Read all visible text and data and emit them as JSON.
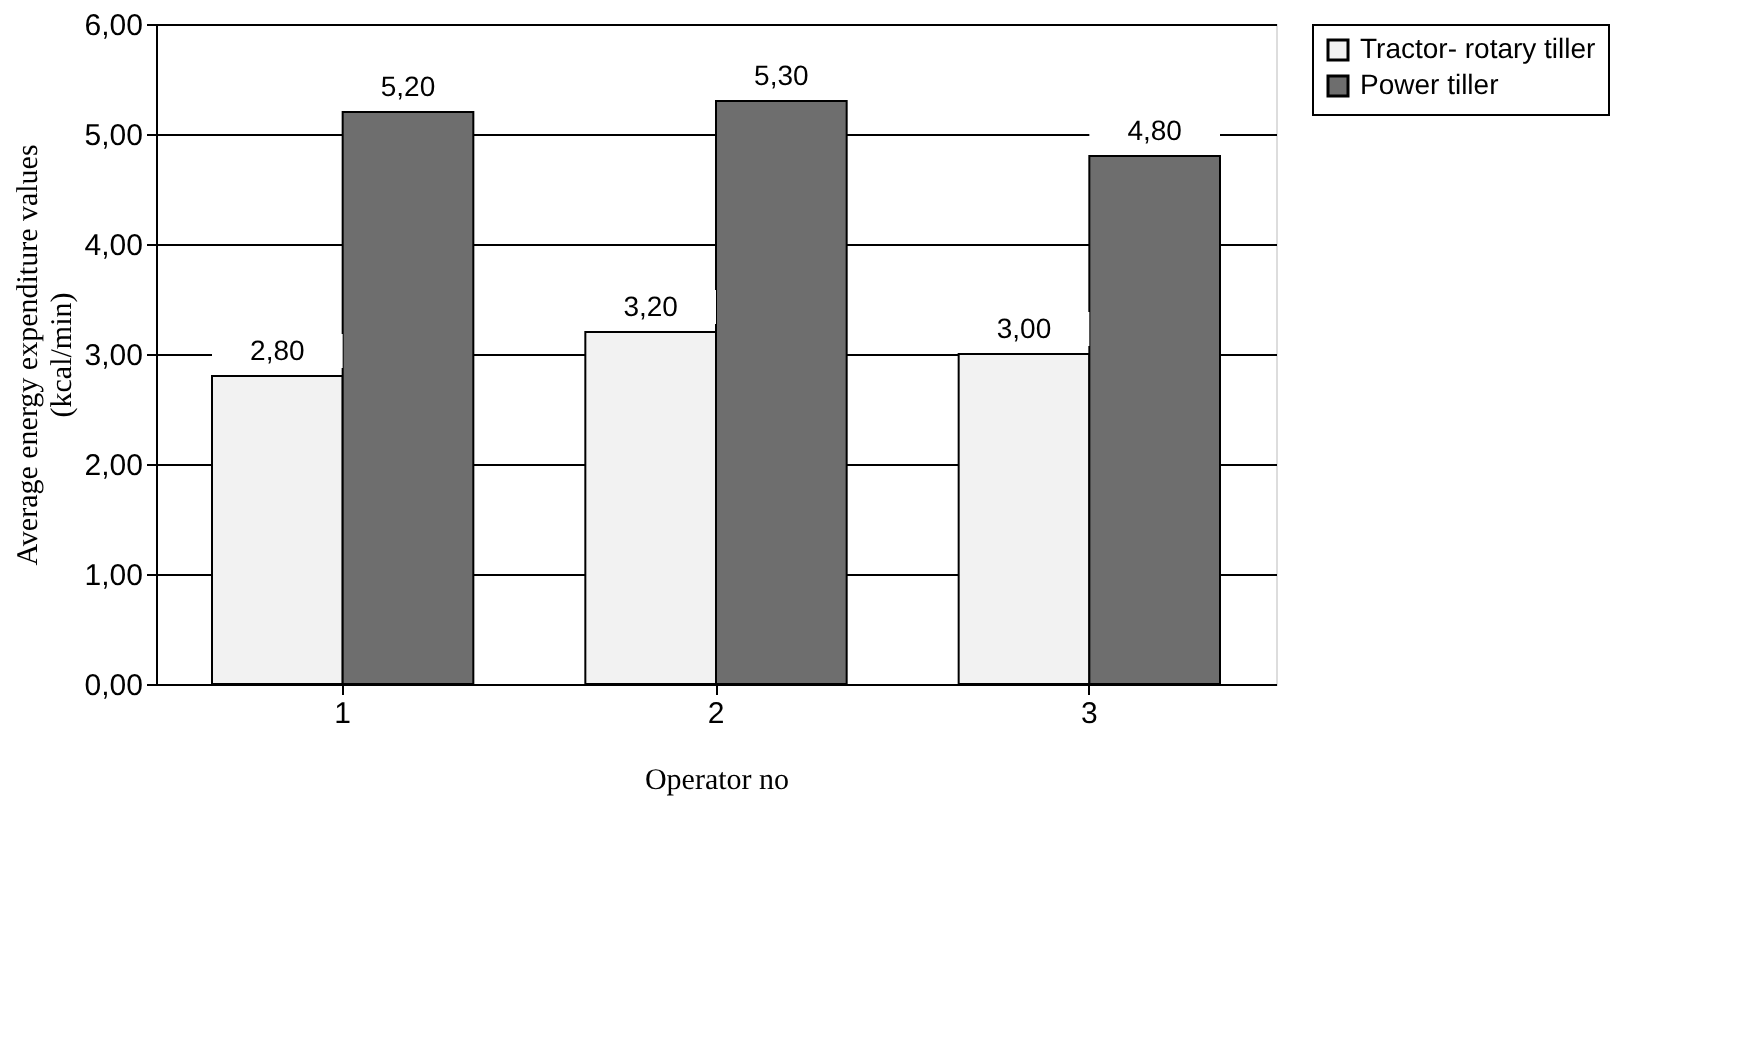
{
  "chart_data": {
    "type": "bar",
    "xlabel": "Operator no",
    "ylabel": "Average energy expenditure values (kcal/min)",
    "categories": [
      "1",
      "2",
      "3"
    ],
    "series": [
      {
        "name": "Tractor- rotary tiller",
        "color": "#f2f2f2",
        "values": [
          2.8,
          3.2,
          3.0
        ],
        "value_labels": [
          "2,80",
          "3,20",
          "3,00"
        ]
      },
      {
        "name": "Power tiller",
        "color": "#6e6e6e",
        "values": [
          5.2,
          5.3,
          4.8
        ],
        "value_labels": [
          "5,20",
          "5,30",
          "4,80"
        ]
      }
    ],
    "ylim": [
      0,
      6
    ],
    "yticks": [
      {
        "value": 0,
        "label": "0,00"
      },
      {
        "value": 1,
        "label": "1,00"
      },
      {
        "value": 2,
        "label": "2,00"
      },
      {
        "value": 3,
        "label": "3,00"
      },
      {
        "value": 4,
        "label": "4,00"
      },
      {
        "value": 5,
        "label": "5,00"
      },
      {
        "value": 6,
        "label": "6,00"
      }
    ],
    "grid": "y",
    "legend": "right"
  }
}
